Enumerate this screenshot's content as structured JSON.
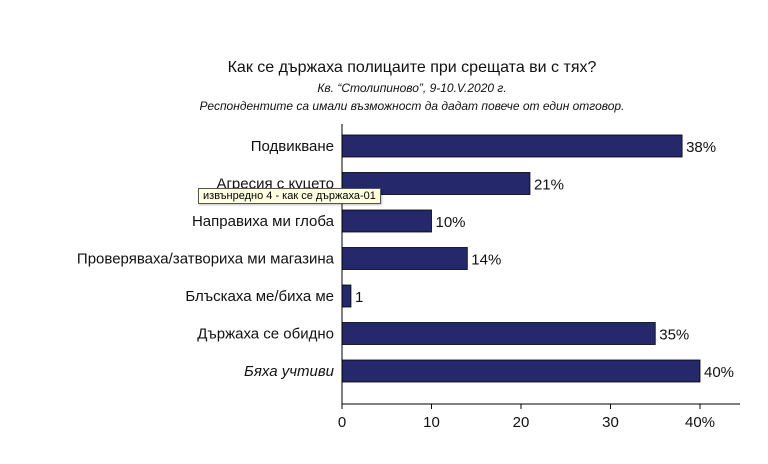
{
  "chart_data": {
    "type": "bar",
    "orientation": "horizontal",
    "title": "Как се държаха полицаите при срещата ви с тях?",
    "subtitle_1": "Кв. “Столипиново”, 9-10.V.2020 г.",
    "subtitle_2": "Респондентите са имали възможност да дадат повече от един отговор.",
    "categories": [
      "Подвикване",
      "Агресия с куцето",
      "Направиха ми глоба",
      "Проверяваха/затвориха ми магазина",
      "Блъскаха ме/биха ме",
      "Държаха се обидно",
      "Бяха учтиви"
    ],
    "italic_categories": [
      "Бяха учтиви"
    ],
    "values": [
      38,
      21,
      10,
      14,
      1,
      35,
      40
    ],
    "value_labels": [
      "38%",
      "21%",
      "10%",
      "14%",
      "1",
      "35%",
      "40%"
    ],
    "xlim": [
      0,
      40
    ],
    "xticks": [
      "0",
      "10",
      "20",
      "30",
      "40%"
    ],
    "bar_color": "#25296b",
    "grid": false
  },
  "tooltip": {
    "text": "извънредно 4 - как се държаха-01"
  }
}
